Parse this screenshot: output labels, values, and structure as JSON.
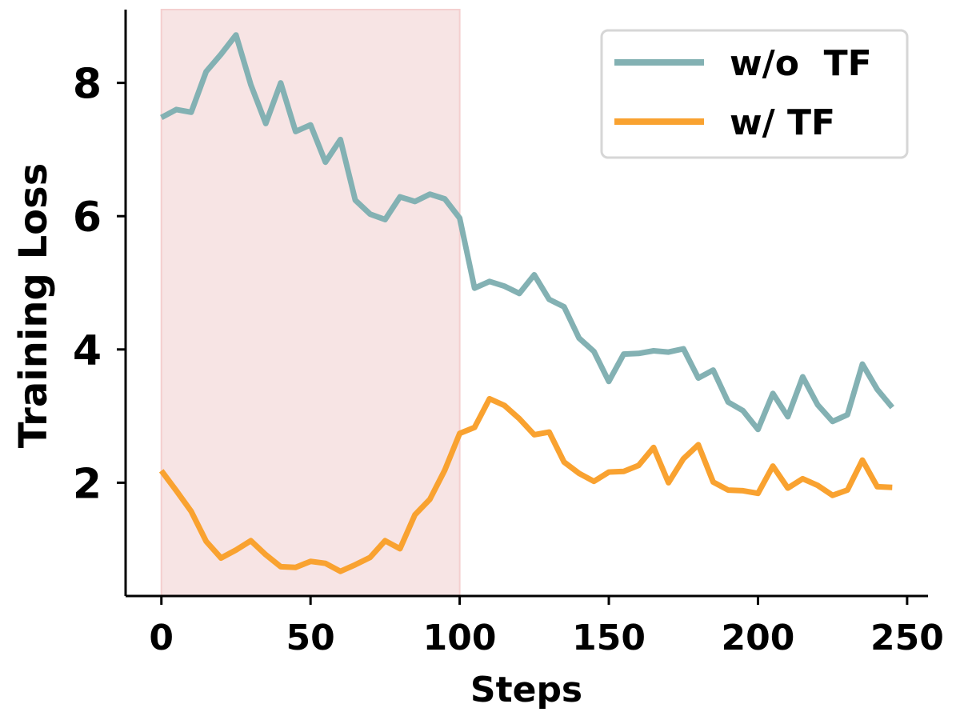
{
  "chart_data": {
    "type": "line",
    "title": "",
    "xlabel": "Steps",
    "ylabel": "Training Loss",
    "xlim": [
      -12,
      257
    ],
    "ylim": [
      0.3,
      9.1
    ],
    "xticks": [
      0,
      50,
      100,
      150,
      200,
      250
    ],
    "yticks": [
      2,
      4,
      6,
      8
    ],
    "xtick_labels": [
      "0",
      "50",
      "100",
      "150",
      "200",
      "250"
    ],
    "ytick_labels": [
      "2",
      "4",
      "6",
      "8"
    ],
    "grid": false,
    "legend_position": "top-right",
    "highlight_region": {
      "x_start": 0,
      "x_end": 100,
      "color": "#f7e4e4"
    },
    "x": [
      0,
      5,
      10,
      15,
      20,
      25,
      30,
      35,
      40,
      45,
      50,
      55,
      60,
      65,
      70,
      75,
      80,
      85,
      90,
      95,
      100,
      105,
      110,
      115,
      120,
      125,
      130,
      135,
      140,
      145,
      150,
      155,
      160,
      165,
      170,
      175,
      180,
      185,
      190,
      195,
      200,
      205,
      210,
      215,
      220,
      225,
      230,
      235,
      240,
      245
    ],
    "series": [
      {
        "name": "w/o  TF",
        "color": "#83b1b3",
        "values": [
          7.48,
          7.6,
          7.56,
          8.17,
          8.43,
          8.72,
          7.97,
          7.39,
          8.0,
          7.27,
          7.37,
          6.81,
          7.15,
          6.24,
          6.03,
          5.95,
          6.29,
          6.22,
          6.33,
          6.26,
          5.97,
          4.92,
          5.02,
          4.95,
          4.84,
          5.12,
          4.75,
          4.64,
          4.17,
          3.97,
          3.52,
          3.93,
          3.94,
          3.98,
          3.96,
          4.01,
          3.57,
          3.69,
          3.21,
          3.08,
          2.8,
          3.34,
          2.99,
          3.59,
          3.17,
          2.92,
          3.02,
          3.78,
          3.4,
          3.13
        ]
      },
      {
        "name": "w/ TF",
        "color": "#f9a230",
        "values": [
          2.18,
          1.88,
          1.57,
          1.12,
          0.87,
          0.99,
          1.13,
          0.92,
          0.74,
          0.73,
          0.82,
          0.79,
          0.67,
          0.77,
          0.88,
          1.13,
          1.01,
          1.52,
          1.75,
          2.19,
          2.74,
          2.83,
          3.26,
          3.16,
          2.96,
          2.72,
          2.76,
          2.31,
          2.14,
          2.02,
          2.16,
          2.17,
          2.26,
          2.53,
          2.0,
          2.36,
          2.57,
          2.01,
          1.89,
          1.88,
          1.84,
          2.25,
          1.92,
          2.06,
          1.96,
          1.81,
          1.89,
          2.34,
          1.94,
          1.93
        ]
      }
    ]
  }
}
